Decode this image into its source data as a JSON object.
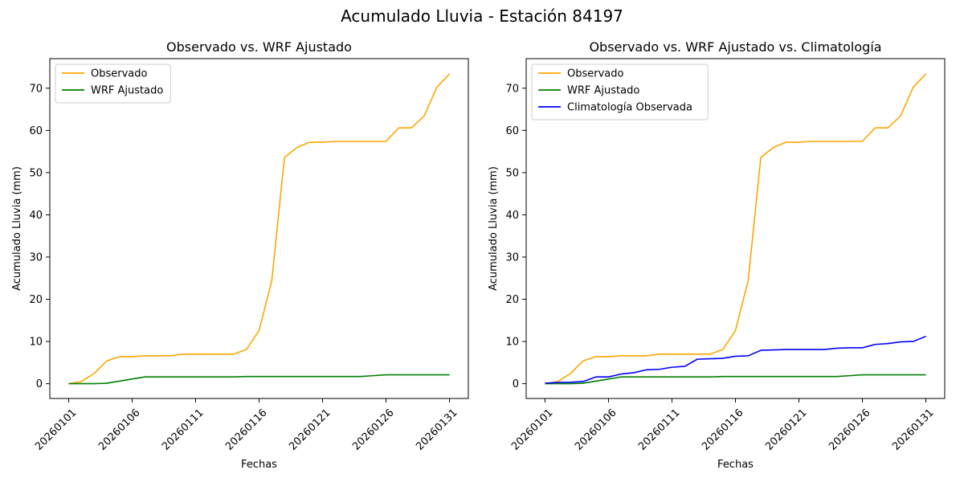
{
  "figure": {
    "suptitle": "Acumulado Lluvia - Estación 84197"
  },
  "colors": {
    "observado": "#ffa500",
    "wrf": "#008000",
    "clima": "#0000ff"
  },
  "chart_data": [
    {
      "type": "line",
      "title": "Observado vs. WRF Ajustado",
      "xlabel": "Fechas",
      "ylabel": "Acumulado Lluvia (mm)",
      "ylim": [
        -3.5,
        77
      ],
      "yticks": [
        0,
        10,
        20,
        30,
        40,
        50,
        60,
        70
      ],
      "xticks": [
        "20260101",
        "20260106",
        "20260111",
        "20260116",
        "20260121",
        "20260126",
        "20260131"
      ],
      "legend_position": "upper-left",
      "x": [
        "20260101",
        "20260102",
        "20260103",
        "20260104",
        "20260105",
        "20260106",
        "20260107",
        "20260108",
        "20260109",
        "20260110",
        "20260111",
        "20260112",
        "20260113",
        "20260114",
        "20260115",
        "20260116",
        "20260117",
        "20260118",
        "20260119",
        "20260120",
        "20260121",
        "20260122",
        "20260123",
        "20260124",
        "20260125",
        "20260126",
        "20260127",
        "20260128",
        "20260129",
        "20260130",
        "20260131"
      ],
      "series": [
        {
          "name": "Observado",
          "color": "#ffa500",
          "values": [
            0,
            0.5,
            2.4,
            5.4,
            6.4,
            6.4,
            6.6,
            6.6,
            6.6,
            7.0,
            7.0,
            7.0,
            7.0,
            7.0,
            8.1,
            12.6,
            24.4,
            53.6,
            56.0,
            57.2,
            57.2,
            57.4,
            57.4,
            57.4,
            57.4,
            57.4,
            60.6,
            60.6,
            63.4,
            70.2,
            73.4
          ]
        },
        {
          "name": "WRF Ajustado",
          "color": "#008000",
          "values": [
            0,
            0,
            0,
            0.1,
            0.6,
            1.1,
            1.6,
            1.6,
            1.6,
            1.6,
            1.6,
            1.6,
            1.6,
            1.6,
            1.7,
            1.7,
            1.7,
            1.7,
            1.7,
            1.7,
            1.7,
            1.7,
            1.7,
            1.7,
            1.9,
            2.1,
            2.1,
            2.1,
            2.1,
            2.1,
            2.1
          ]
        }
      ]
    },
    {
      "type": "line",
      "title": "Observado vs. WRF Ajustado vs. Climatología",
      "xlabel": "Fechas",
      "ylabel": "Acumulado Lluvia (mm)",
      "ylim": [
        -3.5,
        77
      ],
      "yticks": [
        0,
        10,
        20,
        30,
        40,
        50,
        60,
        70
      ],
      "xticks": [
        "20260101",
        "20260106",
        "20260111",
        "20260116",
        "20260121",
        "20260126",
        "20260131"
      ],
      "legend_position": "upper-left",
      "x": [
        "20260101",
        "20260102",
        "20260103",
        "20260104",
        "20260105",
        "20260106",
        "20260107",
        "20260108",
        "20260109",
        "20260110",
        "20260111",
        "20260112",
        "20260113",
        "20260114",
        "20260115",
        "20260116",
        "20260117",
        "20260118",
        "20260119",
        "20260120",
        "20260121",
        "20260122",
        "20260123",
        "20260124",
        "20260125",
        "20260126",
        "20260127",
        "20260128",
        "20260129",
        "20260130",
        "20260131"
      ],
      "series": [
        {
          "name": "Observado",
          "color": "#ffa500",
          "values": [
            0,
            0.5,
            2.4,
            5.4,
            6.4,
            6.4,
            6.6,
            6.6,
            6.6,
            7.0,
            7.0,
            7.0,
            7.0,
            7.0,
            8.1,
            12.6,
            24.4,
            53.6,
            56.0,
            57.2,
            57.2,
            57.4,
            57.4,
            57.4,
            57.4,
            57.4,
            60.6,
            60.6,
            63.4,
            70.2,
            73.4
          ]
        },
        {
          "name": "WRF Ajustado",
          "color": "#008000",
          "values": [
            0,
            0,
            0,
            0.1,
            0.6,
            1.1,
            1.6,
            1.6,
            1.6,
            1.6,
            1.6,
            1.6,
            1.6,
            1.6,
            1.7,
            1.7,
            1.7,
            1.7,
            1.7,
            1.7,
            1.7,
            1.7,
            1.7,
            1.7,
            1.9,
            2.1,
            2.1,
            2.1,
            2.1,
            2.1,
            2.1
          ]
        },
        {
          "name": "Climatología Observada",
          "color": "#0000ff",
          "values": [
            0.1,
            0.3,
            0.35,
            0.5,
            1.6,
            1.6,
            2.3,
            2.6,
            3.3,
            3.4,
            3.9,
            4.1,
            5.8,
            5.9,
            6.0,
            6.5,
            6.6,
            7.9,
            8.0,
            8.1,
            8.1,
            8.1,
            8.1,
            8.4,
            8.5,
            8.5,
            9.3,
            9.5,
            9.9,
            10.0,
            11.2
          ]
        }
      ]
    }
  ]
}
